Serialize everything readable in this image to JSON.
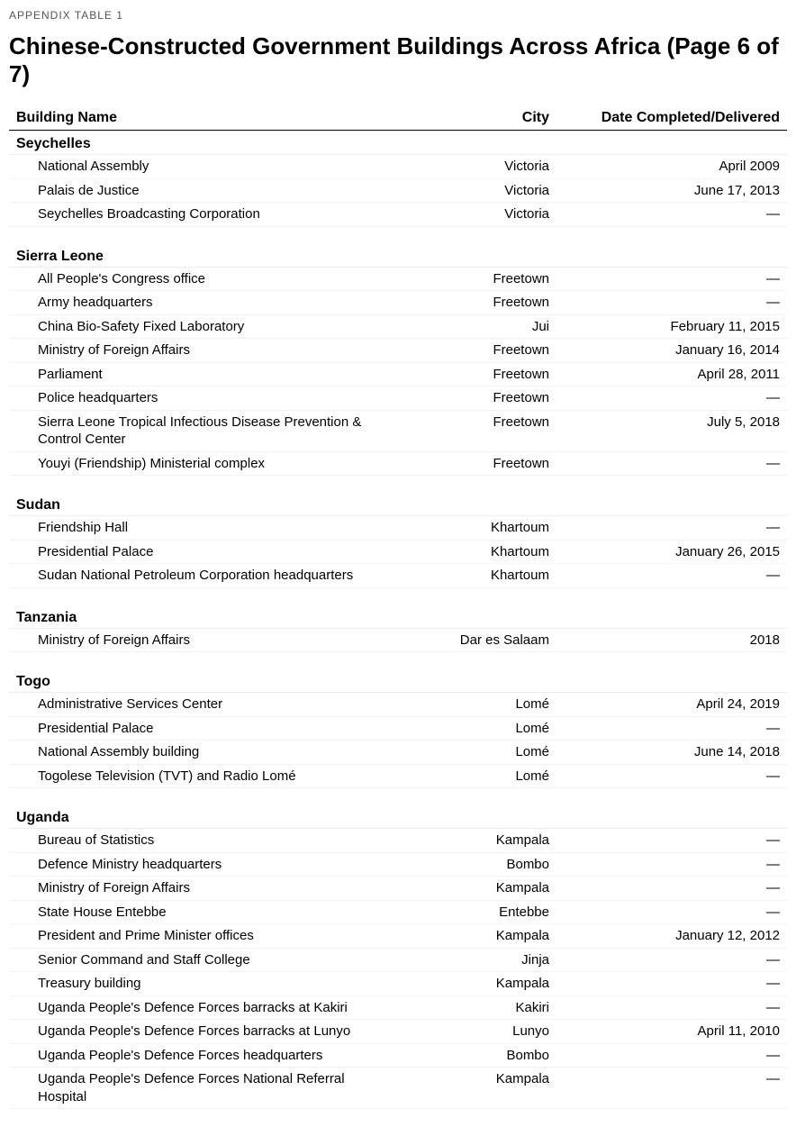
{
  "appendix_label": "APPENDIX TABLE 1",
  "title": "Chinese-Constructed Government Buildings Across Africa (Page 6 of 7)",
  "columns": {
    "name": "Building Name",
    "city": "City",
    "date": "Date Completed/Delivered"
  },
  "groups": [
    {
      "country": "Seychelles",
      "rows": [
        {
          "name": "National Assembly",
          "city": "Victoria",
          "date": "April 2009"
        },
        {
          "name": "Palais de Justice",
          "city": "Victoria",
          "date": "June 17, 2013"
        },
        {
          "name": "Seychelles Broadcasting Corporation",
          "city": "Victoria",
          "date": "—"
        }
      ]
    },
    {
      "country": "Sierra Leone",
      "rows": [
        {
          "name": "All People's Congress office",
          "city": "Freetown",
          "date": "—"
        },
        {
          "name": "Army headquarters",
          "city": "Freetown",
          "date": "—"
        },
        {
          "name": "China Bio-Safety Fixed Laboratory",
          "city": "Jui",
          "date": "February 11, 2015"
        },
        {
          "name": "Ministry of Foreign Affairs",
          "city": "Freetown",
          "date": "January 16, 2014"
        },
        {
          "name": "Parliament",
          "city": "Freetown",
          "date": "April 28, 2011"
        },
        {
          "name": "Police headquarters",
          "city": "Freetown",
          "date": "—"
        },
        {
          "name": "Sierra Leone Tropical Infectious Disease Prevention & Control Center",
          "city": "Freetown",
          "date": "July 5, 2018"
        },
        {
          "name": "Youyi (Friendship) Ministerial complex",
          "city": "Freetown",
          "date": "—"
        }
      ]
    },
    {
      "country": "Sudan",
      "rows": [
        {
          "name": "Friendship Hall",
          "city": "Khartoum",
          "date": "—"
        },
        {
          "name": "Presidential Palace",
          "city": "Khartoum",
          "date": "January 26, 2015"
        },
        {
          "name": "Sudan National Petroleum Corporation headquarters",
          "city": "Khartoum",
          "date": "—"
        }
      ]
    },
    {
      "country": "Tanzania",
      "rows": [
        {
          "name": "Ministry of Foreign Affairs",
          "city": "Dar es Salaam",
          "date": "2018"
        }
      ]
    },
    {
      "country": "Togo",
      "rows": [
        {
          "name": "Administrative Services Center",
          "city": "Lomé",
          "date": "April 24, 2019"
        },
        {
          "name": "Presidential Palace",
          "city": "Lomé",
          "date": "—"
        },
        {
          "name": "National Assembly building",
          "city": "Lomé",
          "date": "June 14, 2018"
        },
        {
          "name": "Togolese Television (TVT) and Radio Lomé",
          "city": "Lomé",
          "date": "—"
        }
      ]
    },
    {
      "country": "Uganda",
      "rows": [
        {
          "name": "Bureau of Statistics",
          "city": "Kampala",
          "date": "—"
        },
        {
          "name": "Defence Ministry headquarters",
          "city": "Bombo",
          "date": "—"
        },
        {
          "name": "Ministry of Foreign Affairs",
          "city": "Kampala",
          "date": "—"
        },
        {
          "name": "State House Entebbe",
          "city": "Entebbe",
          "date": "—"
        },
        {
          "name": "President and Prime Minister offices",
          "city": "Kampala",
          "date": "January 12, 2012"
        },
        {
          "name": "Senior Command and Staff College",
          "city": "Jinja",
          "date": "—"
        },
        {
          "name": "Treasury building",
          "city": "Kampala",
          "date": "—"
        },
        {
          "name": "Uganda People's Defence Forces barracks at Kakiri",
          "city": "Kakiri",
          "date": "—"
        },
        {
          "name": "Uganda People's Defence Forces barracks at Lunyo",
          "city": "Lunyo",
          "date": "April 11, 2010"
        },
        {
          "name": "Uganda People's Defence Forces headquarters",
          "city": "Bombo",
          "date": "—"
        },
        {
          "name": "Uganda People's Defence Forces National Referral Hospital",
          "city": "Kampala",
          "date": "—"
        }
      ]
    }
  ]
}
